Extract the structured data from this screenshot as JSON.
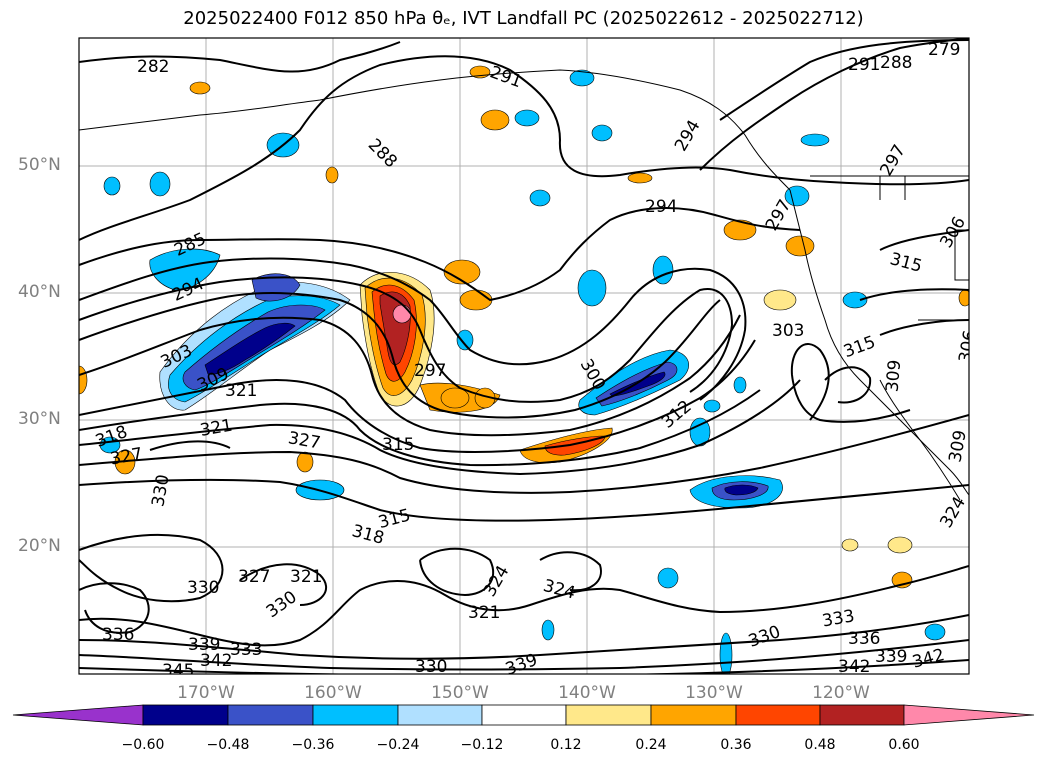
{
  "title": "2025022400 F012 850 hPa θₑ, IVT Landfall PC (2025022612 - 2025022712)",
  "map": {
    "lat_labels": [
      "50°N",
      "40°N",
      "30°N",
      "20°N"
    ],
    "lon_labels": [
      "170°W",
      "160°W",
      "150°W",
      "140°W",
      "130°W",
      "120°W"
    ],
    "contour_labels": [
      "282",
      "291",
      "288",
      "285",
      "294",
      "294",
      "303",
      "309",
      "297",
      "300",
      "312",
      "315",
      "321",
      "318",
      "327",
      "330",
      "327",
      "315",
      "318",
      "330",
      "327",
      "321",
      "330",
      "324",
      "324",
      "321",
      "336",
      "339",
      "333",
      "345",
      "342",
      "330",
      "339",
      "330",
      "333",
      "336",
      "342",
      "339",
      "342",
      "303",
      "315",
      "309",
      "306",
      "297",
      "294",
      "291",
      "288",
      "279",
      "297",
      "306",
      "315",
      "309",
      "324",
      "321"
    ]
  },
  "colorbar": {
    "ticks": [
      "−0.60",
      "−0.48",
      "−0.36",
      "−0.24",
      "−0.12",
      "0.12",
      "0.24",
      "0.36",
      "0.48",
      "0.60"
    ],
    "colors": [
      "#9932cc",
      "#00008b",
      "#3a52c8",
      "#00bfff",
      "#b0e0ff",
      "#ffffff",
      "#ffe88a",
      "#ffa500",
      "#ff4500",
      "#b22222",
      "#ff88aa"
    ]
  }
}
